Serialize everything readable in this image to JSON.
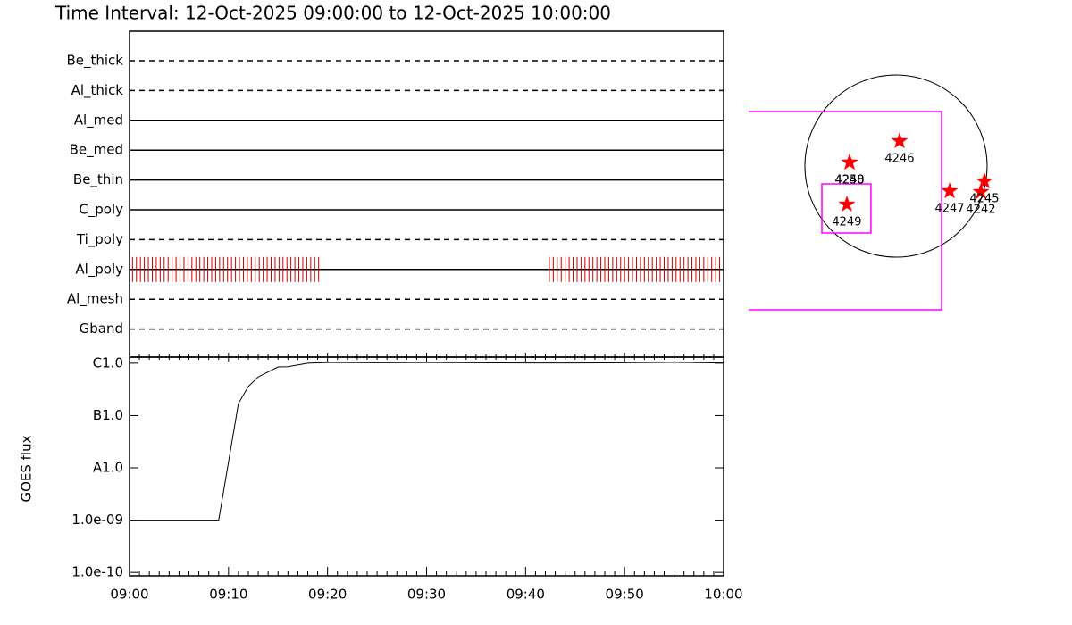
{
  "chart_data": [
    {
      "type": "timeline",
      "title": "Time Interval: 12-Oct-2025 09:00:00 to 12-Oct-2025 10:00:00",
      "categories": [
        "Be_thick",
        "Al_thick",
        "Al_med",
        "Be_med",
        "Be_thin",
        "C_poly",
        "Ti_poly",
        "Al_poly",
        "Al_mesh",
        "Gband"
      ],
      "line_styles": [
        "dashed",
        "dashed",
        "solid",
        "solid",
        "solid",
        "solid",
        "dashed",
        "solid",
        "dashed",
        "dashed"
      ],
      "events": {
        "category": "Al_poly",
        "color": "#cc0000",
        "x": [
          0.3,
          0.7,
          1.1,
          1.5,
          1.9,
          2.3,
          2.7,
          3.1,
          3.5,
          3.9,
          4.3,
          4.7,
          5.1,
          5.5,
          5.9,
          6.3,
          6.7,
          7.1,
          7.5,
          7.9,
          8.3,
          8.7,
          9.1,
          9.5,
          9.9,
          10.3,
          10.7,
          11.1,
          11.5,
          11.9,
          12.3,
          12.7,
          13.1,
          13.5,
          13.9,
          14.3,
          14.7,
          15.1,
          15.5,
          15.9,
          16.3,
          16.7,
          17.1,
          17.5,
          17.9,
          18.3,
          18.7,
          19.1,
          42.4,
          42.8,
          43.2,
          43.6,
          44.0,
          44.4,
          44.8,
          45.2,
          45.6,
          46.0,
          46.4,
          46.8,
          47.2,
          47.6,
          48.0,
          48.4,
          48.8,
          49.2,
          49.6,
          50.0,
          50.4,
          50.8,
          51.2,
          51.6,
          52.0,
          52.4,
          52.8,
          53.2,
          53.6,
          54.0,
          54.4,
          54.8,
          55.2,
          55.6,
          56.0,
          56.4,
          56.8,
          57.2,
          57.6,
          58.0,
          58.4,
          58.8,
          59.2,
          59.6
        ]
      },
      "xlim": [
        0,
        60
      ]
    },
    {
      "type": "line",
      "ylabel": "GOES flux",
      "log_scale": true,
      "color": "#000000",
      "x": [
        0.9,
        9.0,
        11.0,
        12.0,
        13.0,
        15.0,
        16.0,
        18.0,
        20.0,
        25,
        30,
        35,
        40,
        45,
        50,
        55,
        60
      ],
      "values": [
        1e-09,
        1e-09,
        1.7e-07,
        3.6e-07,
        5.5e-07,
        8.5e-07,
        8.6e-07,
        1e-06,
        1.03e-06,
        1.02e-06,
        1.03e-06,
        1.02e-06,
        1.01e-06,
        1.01e-06,
        1.02e-06,
        1.04e-06,
        1.01e-06
      ],
      "xlim": [
        0,
        60
      ],
      "xticks": [
        {
          "value": 0,
          "label": "09:00"
        },
        {
          "value": 10,
          "label": "09:10"
        },
        {
          "value": 20,
          "label": "09:20"
        },
        {
          "value": 30,
          "label": "09:30"
        },
        {
          "value": 40,
          "label": "09:40"
        },
        {
          "value": 50,
          "label": "09:50"
        },
        {
          "value": 60,
          "label": "10:00"
        }
      ],
      "ylim": [
        8.6e-11,
        1.31e-06
      ],
      "yticks": [
        {
          "value": 1e-06,
          "label": "C1.0"
        },
        {
          "value": 1e-07,
          "label": "B1.0"
        },
        {
          "value": 1e-08,
          "label": "A1.0"
        },
        {
          "value": 1e-09,
          "label": "1.0e-09"
        },
        {
          "value": 1e-10,
          "label": "1.0e-10"
        }
      ]
    },
    {
      "type": "map",
      "solar_radius": 975,
      "xlim": [
        -1749,
        1692
      ],
      "ylim": [
        -1663,
        1587
      ],
      "point_color": "#ff0000",
      "points": [
        {
          "label": "4250",
          "x": -497,
          "y": 38
        },
        {
          "label": "4248",
          "x": -497,
          "y": 38
        },
        {
          "label": "4246",
          "x": 38,
          "y": 268
        },
        {
          "label": "4249",
          "x": -526,
          "y": -411
        },
        {
          "label": "4247",
          "x": 574,
          "y": -268
        },
        {
          "label": "4242",
          "x": 908,
          "y": -277
        },
        {
          "label": "4245",
          "x": 946,
          "y": -163
        }
      ],
      "box_color": "#ff00ff",
      "boxes": [
        {
          "x": [
            -1577,
            488
          ],
          "y": [
            -1539,
            583
          ]
        },
        {
          "x": [
            -793,
            -268
          ],
          "y": [
            -717,
            -191
          ]
        }
      ]
    }
  ]
}
